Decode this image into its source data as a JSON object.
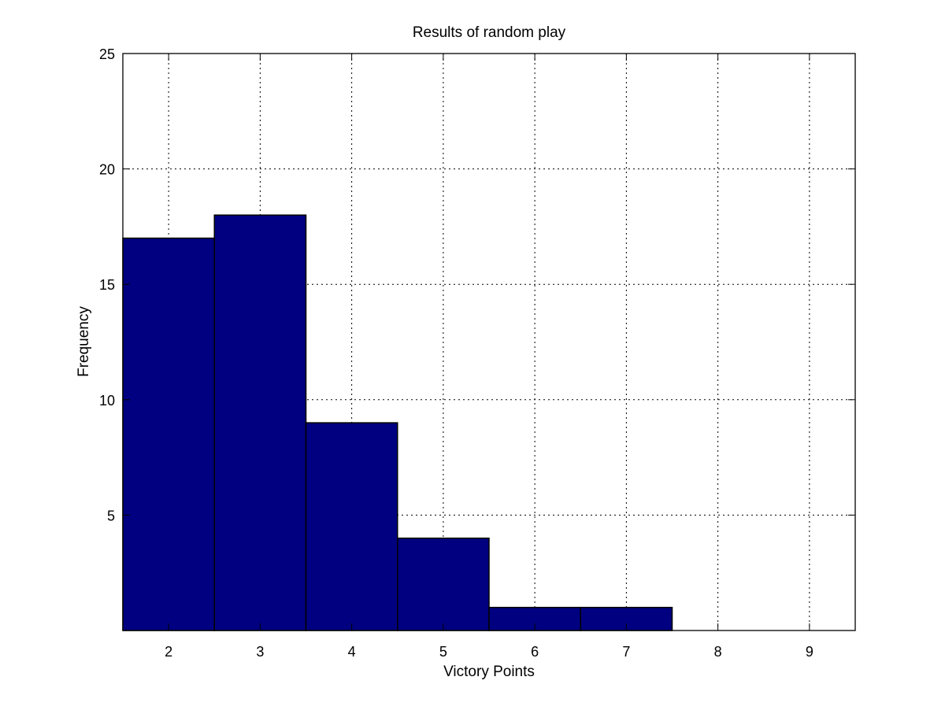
{
  "chart_data": {
    "type": "bar",
    "title": "Results of random play",
    "xlabel": "Victory Points",
    "ylabel": "Frequency",
    "categories": [
      2,
      3,
      4,
      5,
      6,
      7,
      8,
      9
    ],
    "values": [
      17,
      18,
      9,
      4,
      1,
      1,
      0,
      0
    ],
    "xlim": [
      1.5,
      9.5
    ],
    "ylim": [
      0,
      25
    ],
    "yticks": [
      5,
      10,
      15,
      20,
      25
    ],
    "xticks": [
      2,
      3,
      4,
      5,
      6,
      7,
      8,
      9
    ],
    "grid": true,
    "bar_color": "#000080",
    "bar_edge_color": "#000000"
  }
}
